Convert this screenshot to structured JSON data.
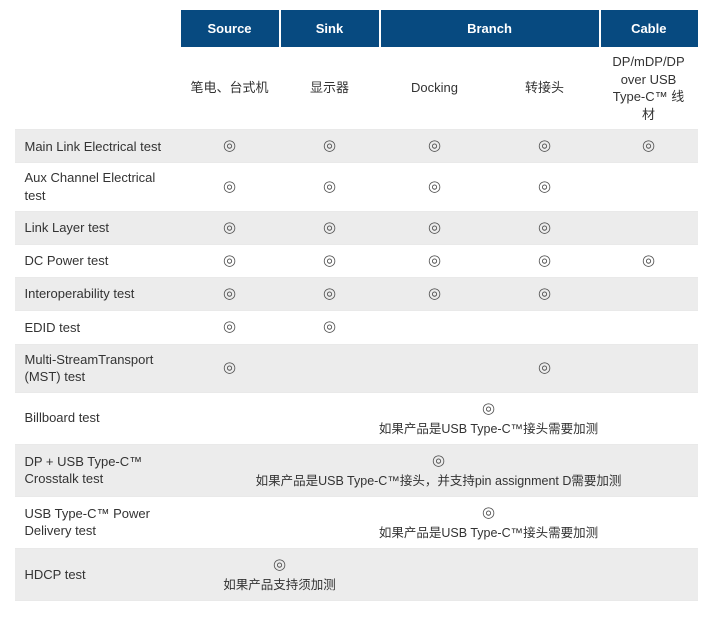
{
  "colors": {
    "header_bg": "#074a80",
    "header_text": "#ffffff",
    "stripe_bg": "#ececec",
    "border": "#e9e9e9",
    "text": "#333333",
    "mark_color": "#555555"
  },
  "mark_glyph": "◎",
  "header_groups": {
    "blank": "",
    "source": "Source",
    "sink": "Sink",
    "branch": "Branch",
    "cable": "Cable"
  },
  "sub_headers": {
    "source": "笔电、台式机",
    "sink": "显示器",
    "branch_docking": "Docking",
    "branch_adapter": "转接头",
    "cable": "DP/mDP/DP over USB Type-C™ 线材"
  },
  "rows": [
    {
      "label": "Main Link Electrical test",
      "cells": [
        "mark",
        "mark",
        "mark",
        "mark",
        "mark"
      ],
      "stripe": true
    },
    {
      "label": "Aux Channel Electrical test",
      "cells": [
        "mark",
        "mark",
        "mark",
        "mark",
        ""
      ],
      "stripe": false
    },
    {
      "label": "Link Layer test",
      "cells": [
        "mark",
        "mark",
        "mark",
        "mark",
        ""
      ],
      "stripe": true
    },
    {
      "label": "DC Power test",
      "cells": [
        "mark",
        "mark",
        "mark",
        "mark",
        "mark"
      ],
      "stripe": false
    },
    {
      "label": "Interoperability test",
      "cells": [
        "mark",
        "mark",
        "mark",
        "mark",
        ""
      ],
      "stripe": true
    },
    {
      "label": "EDID test",
      "cells": [
        "mark",
        "mark",
        "",
        "",
        ""
      ],
      "stripe": false
    },
    {
      "label": "Multi-StreamTransport (MST) test",
      "cells": [
        "mark",
        "",
        "",
        "mark",
        ""
      ],
      "stripe": true
    }
  ],
  "note_rows": [
    {
      "label": "Billboard test",
      "span_start": 2,
      "span": 4,
      "text": "如果产品是USB Type-C™接头需要加测",
      "stripe": false,
      "pre_blank": true
    },
    {
      "label": "DP + USB Type-C™ Crosstalk test",
      "span_start": 1,
      "span": 5,
      "text": "如果产品是USB Type-C™接头，并支持pin assignment D需要加测",
      "stripe": true,
      "pre_blank": false
    },
    {
      "label": "USB Type-C™ Power Delivery test",
      "span_start": 2,
      "span": 4,
      "text": "如果产品是USB Type-C™接头需要加测",
      "stripe": false,
      "pre_blank": true
    },
    {
      "label": "HDCP test",
      "span_start": 1,
      "span": 2,
      "text": "如果产品支持须加测",
      "stripe": true,
      "pre_blank": false,
      "post_blank": 3
    }
  ]
}
